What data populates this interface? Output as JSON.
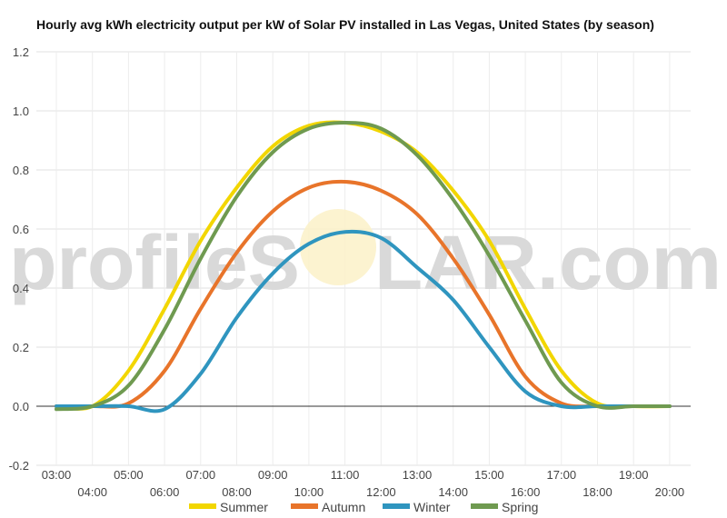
{
  "title": "Hourly avg kWh electricity output per kW of Solar PV installed in Las Vegas, United States (by season)",
  "watermark": {
    "left": "profileS",
    "right": "LAR.com"
  },
  "chart_data": {
    "type": "line",
    "title": "Hourly avg kWh electricity output per kW of Solar PV installed in Las Vegas, United States (by season)",
    "xlabel": "",
    "ylabel": "",
    "ylim": [
      -0.2,
      1.2
    ],
    "yticks": [
      "1.2",
      "1.0",
      "0.8",
      "0.6",
      "0.4",
      "0.2",
      "0.0",
      "-0.2"
    ],
    "yticks_values": [
      1.2,
      1.0,
      0.8,
      0.6,
      0.4,
      0.2,
      0.0,
      -0.2
    ],
    "categories": [
      "03:00",
      "04:00",
      "05:00",
      "06:00",
      "07:00",
      "08:00",
      "09:00",
      "10:00",
      "11:00",
      "12:00",
      "13:00",
      "14:00",
      "15:00",
      "16:00",
      "17:00",
      "18:00",
      "19:00",
      "20:00"
    ],
    "grid": true,
    "legend_position": "bottom",
    "series": [
      {
        "name": "Summer",
        "color": "#f2d600",
        "values": [
          0.0,
          0.0,
          0.12,
          0.33,
          0.56,
          0.74,
          0.88,
          0.95,
          0.96,
          0.93,
          0.86,
          0.73,
          0.56,
          0.33,
          0.12,
          0.01,
          0.0,
          0.0
        ]
      },
      {
        "name": "Autumn",
        "color": "#e8742a",
        "values": [
          0.0,
          0.0,
          0.01,
          0.12,
          0.33,
          0.52,
          0.66,
          0.74,
          0.76,
          0.73,
          0.65,
          0.5,
          0.31,
          0.1,
          0.01,
          0.0,
          0.0,
          0.0
        ]
      },
      {
        "name": "Winter",
        "color": "#2f95bf",
        "values": [
          0.0,
          0.0,
          0.0,
          -0.01,
          0.11,
          0.3,
          0.45,
          0.55,
          0.59,
          0.57,
          0.47,
          0.36,
          0.2,
          0.05,
          0.0,
          0.0,
          0.0,
          0.0
        ]
      },
      {
        "name": "Spring",
        "color": "#6f9a50",
        "values": [
          -0.01,
          0.0,
          0.07,
          0.26,
          0.5,
          0.71,
          0.86,
          0.94,
          0.96,
          0.94,
          0.85,
          0.7,
          0.51,
          0.29,
          0.08,
          0.0,
          0.0,
          0.0
        ]
      }
    ]
  }
}
